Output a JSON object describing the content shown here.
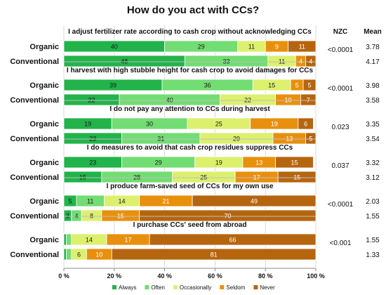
{
  "chart_data": {
    "type": "bar",
    "stacked": true,
    "orientation": "horizontal",
    "title": "How do you act with CCs?",
    "xlim": [
      0,
      100
    ],
    "x_ticks": [
      "0 %",
      "20 %",
      "40 %",
      "60 %",
      "80 %",
      "100 %"
    ],
    "columns": {
      "nzc": "NZC",
      "mean": "Mean"
    },
    "legend": {
      "position": "bottom"
    },
    "series": [
      {
        "name": "Always",
        "color": "#22b34a"
      },
      {
        "name": "Often",
        "color": "#72dd72"
      },
      {
        "name": "Occasionally",
        "color": "#ddf06e"
      },
      {
        "name": "Seldom",
        "color": "#e8900e"
      },
      {
        "name": "Never",
        "color": "#b6650f"
      }
    ],
    "questions": [
      {
        "statement": "I adjust fertilizer rate according to cash crop without acknowledging CCs",
        "nzc": "<0.0001",
        "groups": [
          {
            "label": "Organic",
            "values": [
              40,
              29,
              11,
              9,
              11
            ],
            "mean": "3.78"
          },
          {
            "label": "Conventional",
            "values": [
              48,
              33,
              11,
              4,
              4
            ],
            "mean": "4.17"
          }
        ]
      },
      {
        "statement": "I harvest with high stubble height for cash crop to avoid damages for CCs",
        "nzc": "<0.0001",
        "groups": [
          {
            "label": "Organic",
            "values": [
              39,
              36,
              15,
              5,
              5
            ],
            "mean": "3.98"
          },
          {
            "label": "Conventional",
            "values": [
              22,
              40,
              22,
              10,
              7
            ],
            "mean": "3.58"
          }
        ]
      },
      {
        "statement": "I do not pay any attention to CCs during harvest",
        "nzc": "0.023",
        "groups": [
          {
            "label": "Organic",
            "values": [
              19,
              30,
              25,
              19,
              6
            ],
            "mean": "3.35"
          },
          {
            "label": "Conventional",
            "values": [
              23,
              31,
              29,
              13,
              5
            ],
            "mean": "3.54"
          }
        ]
      },
      {
        "statement": "I do measures to avoid that cash crop residues suppress CCs",
        "nzc": "0.037",
        "groups": [
          {
            "label": "Organic",
            "values": [
              23,
              29,
              19,
              13,
              15
            ],
            "mean": "3.32"
          },
          {
            "label": "Conventional",
            "values": [
              15,
              28,
              25,
              17,
              15
            ],
            "mean": "3.12"
          }
        ]
      },
      {
        "statement": "I produce farm-saved seed of CCs for my own use",
        "nzc": "<0.0001",
        "groups": [
          {
            "label": "Organic",
            "values": [
              5,
              11,
              14,
              21,
              49
            ],
            "mean": "2.03"
          },
          {
            "label": "Conventional",
            "values": [
              3,
              4,
              8,
              15,
              70
            ],
            "mean": "1.55"
          }
        ]
      },
      {
        "statement": "I purchase CCs' seed from abroad",
        "nzc": "<0.001",
        "groups": [
          {
            "label": "Organic",
            "values": [
              1,
              2,
              14,
              17,
              66
            ],
            "mean": "1.55"
          },
          {
            "label": "Conventional",
            "values": [
              1,
              2,
              6,
              10,
              81
            ],
            "mean": "1.33"
          }
        ]
      }
    ]
  }
}
